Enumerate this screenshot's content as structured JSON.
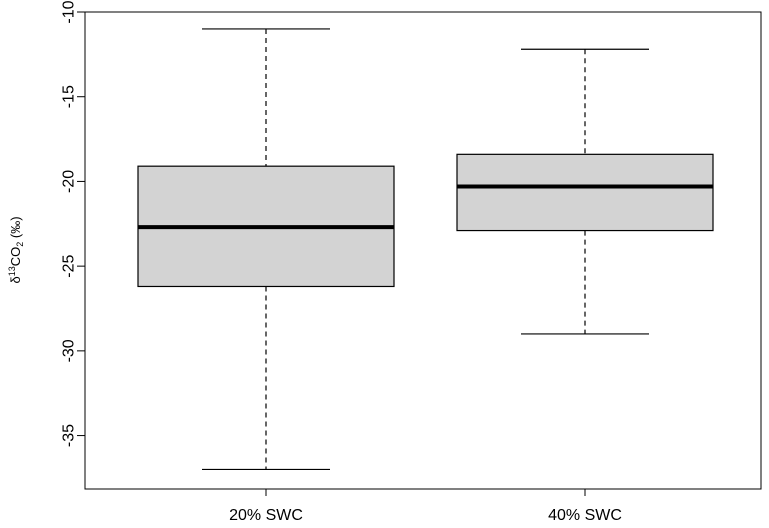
{
  "chart_data": {
    "type": "box",
    "ylabel": {
      "delta": "δ",
      "sup": "13",
      "co": "CO",
      "sub": "2",
      "unit": " (‰)"
    },
    "ylim": [
      -38,
      -10
    ],
    "yticks": [
      -35,
      -30,
      -25,
      -20,
      -15,
      -10
    ],
    "ytick_labels": [
      "-35",
      "-30",
      "-25",
      "-20",
      "-15",
      "-10"
    ],
    "categories": [
      "20% SWC",
      "40% SWC"
    ],
    "boxes": [
      {
        "category": "20% SWC",
        "whisker_low": -37.0,
        "q1": -26.2,
        "median": -22.7,
        "q3": -19.1,
        "whisker_high": -11.0
      },
      {
        "category": "40% SWC",
        "whisker_low": -29.0,
        "q1": -22.9,
        "median": -20.3,
        "q3": -18.4,
        "whisker_high": -12.2
      }
    ],
    "grid": false,
    "legend": "none",
    "colors": {
      "box_fill": "#d3d3d3",
      "stroke": "#000000"
    }
  }
}
